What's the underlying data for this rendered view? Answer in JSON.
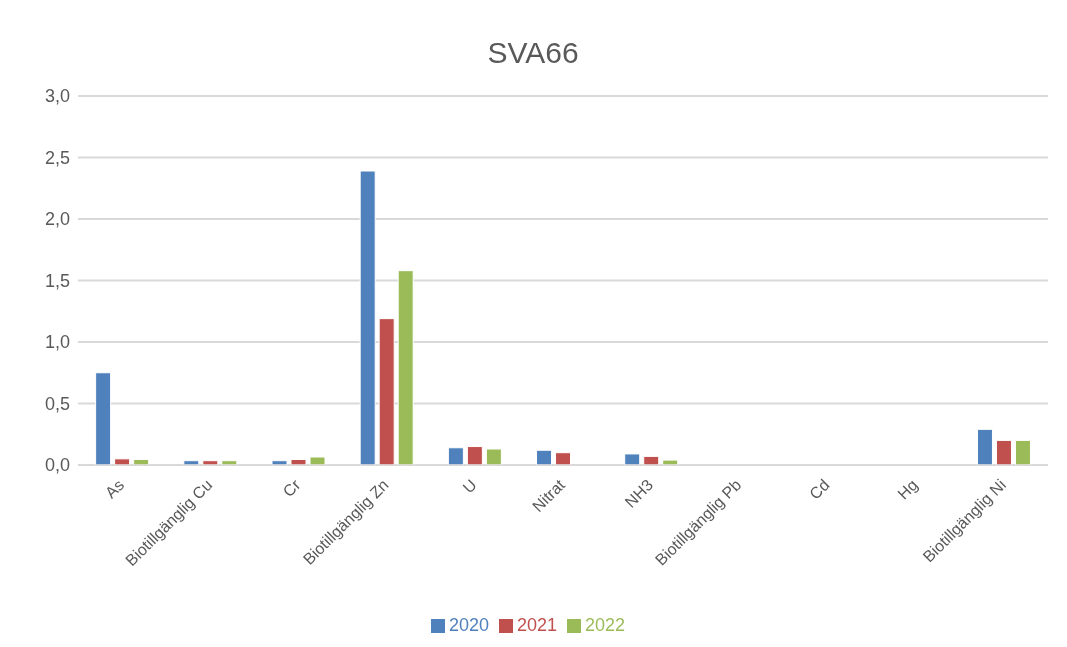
{
  "chart_data": {
    "type": "bar",
    "title": "SVA66",
    "categories": [
      "As",
      "Biotillgänglig Cu",
      "Cr",
      "Biotillgänglig Zn",
      "U",
      "Nitrat",
      "NH3",
      "Biotillgänglig Pb",
      "Cd",
      "Hg",
      "Biotillgänglig Ni"
    ],
    "series": [
      {
        "name": "2020",
        "color": "#4f81bd",
        "values": [
          0.75,
          0.035,
          0.035,
          2.39,
          0.14,
          0.12,
          0.09,
          null,
          null,
          null,
          0.29
        ]
      },
      {
        "name": "2021",
        "color": "#c0504d",
        "values": [
          0.05,
          0.035,
          0.045,
          1.19,
          0.15,
          0.1,
          0.07,
          null,
          null,
          null,
          0.2
        ]
      },
      {
        "name": "2022",
        "color": "#9bbb59",
        "values": [
          0.045,
          0.035,
          0.065,
          1.58,
          0.13,
          null,
          0.04,
          null,
          null,
          null,
          0.2
        ]
      }
    ],
    "ylim": [
      0,
      3
    ],
    "yticks": [
      {
        "value": 0,
        "label": "0,0"
      },
      {
        "value": 0.5,
        "label": "0,5"
      },
      {
        "value": 1,
        "label": "1,0"
      },
      {
        "value": 1.5,
        "label": "1,5"
      },
      {
        "value": 2,
        "label": "2,0"
      },
      {
        "value": 2.5,
        "label": "2,5"
      },
      {
        "value": 3,
        "label": "3,0"
      }
    ],
    "grid": "y",
    "legend": "bottom"
  }
}
